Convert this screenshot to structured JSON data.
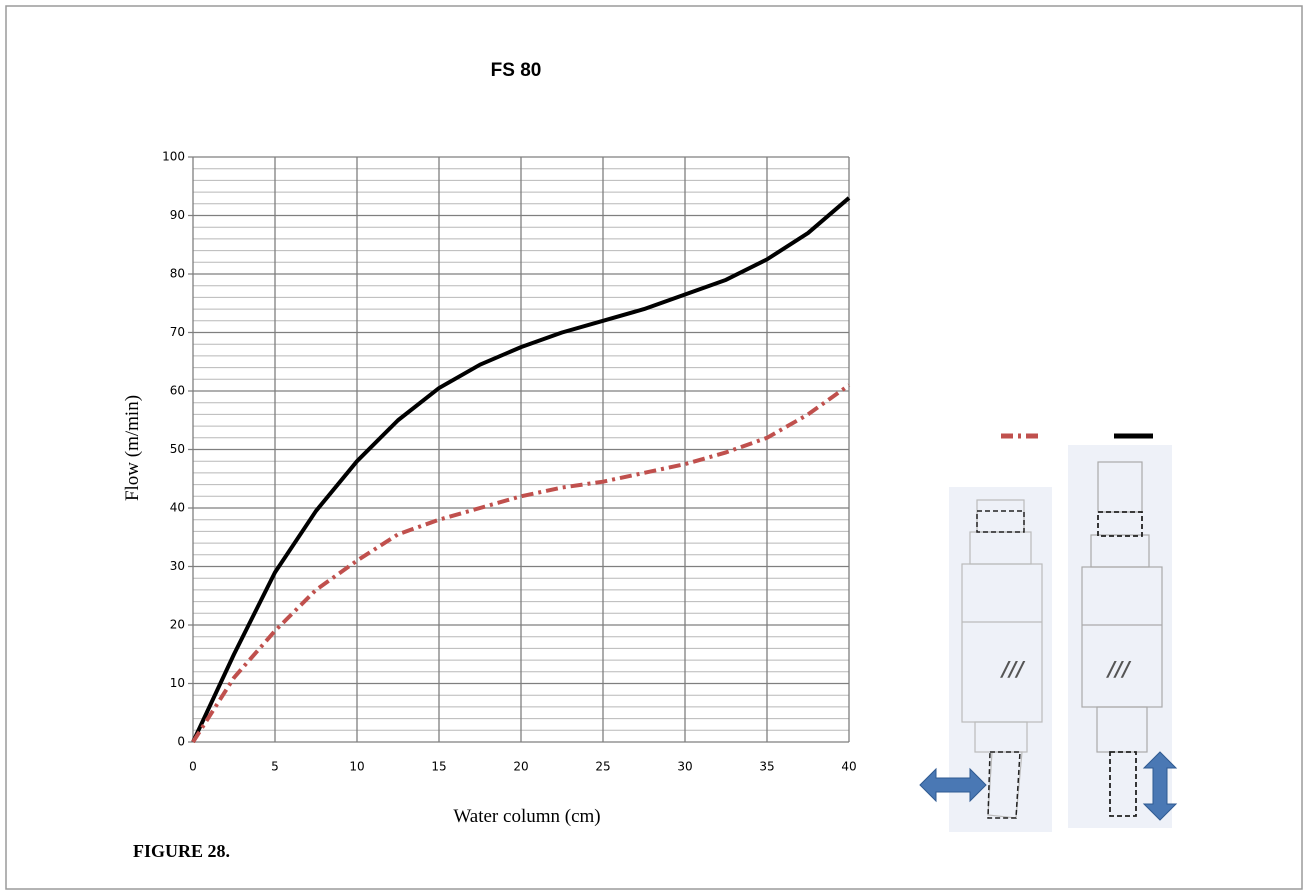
{
  "chart_data": {
    "type": "line",
    "title": "FS 80",
    "xlabel": "Water column (cm)",
    "ylabel": "Flow (m/min)",
    "caption": "FIGURE 28.",
    "x": [
      0,
      2.5,
      5,
      7.5,
      10,
      12.5,
      15,
      17.5,
      20,
      22.5,
      25,
      27.5,
      30,
      32.5,
      35,
      37.5,
      40
    ],
    "series": [
      {
        "color": "#000000",
        "line_style": "solid",
        "values": [
          0,
          15,
          29,
          39.5,
          48,
          55,
          60.5,
          64.5,
          67.5,
          70,
          72,
          74,
          76.5,
          79,
          82.5,
          87,
          93
        ]
      },
      {
        "color": "#c0504d",
        "line_style": "dashdot",
        "values": [
          0,
          11,
          19,
          26,
          31,
          35.5,
          38,
          40,
          42,
          43.5,
          44.5,
          46,
          47.5,
          49.5,
          52,
          56,
          61
        ]
      }
    ],
    "xlim": [
      0,
      40
    ],
    "xticks": [
      0,
      5,
      10,
      15,
      20,
      25,
      30,
      35,
      40
    ],
    "ylim": [
      0,
      100
    ],
    "yticks": [
      0,
      10,
      20,
      30,
      40,
      50,
      60,
      70,
      80,
      90,
      100
    ],
    "y_minor_ticks": [
      2,
      4,
      6,
      8,
      12,
      14,
      16,
      18,
      22,
      24,
      26,
      28,
      32,
      34,
      36,
      38,
      42,
      44,
      46,
      48,
      52,
      54,
      56,
      58,
      62,
      64,
      66,
      68,
      72,
      74,
      76,
      78,
      82,
      84,
      86,
      88,
      92,
      94,
      96,
      98
    ],
    "grid": true
  }
}
